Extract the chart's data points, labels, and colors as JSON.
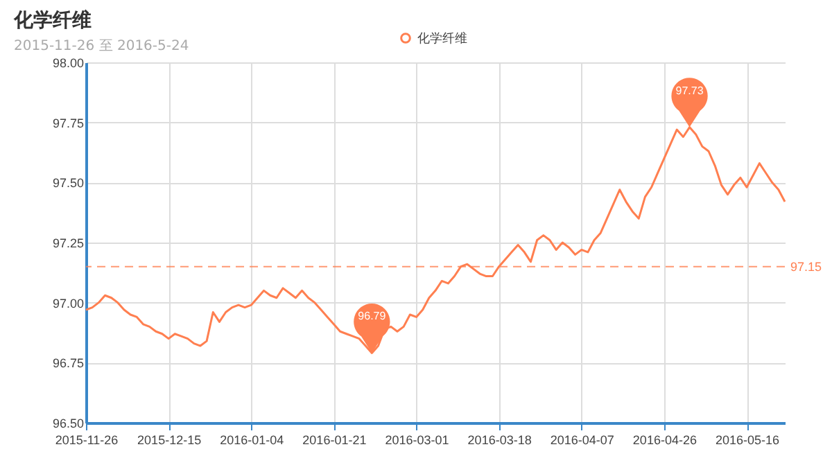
{
  "chart_data": {
    "type": "line",
    "title": "化学纤维",
    "subtitle": "2015-11-26 至 2016-5-24",
    "categories": [
      "2015-11-26",
      null,
      null,
      null,
      null,
      null,
      null,
      null,
      null,
      null,
      null,
      null,
      null,
      "2015-12-15",
      null,
      null,
      null,
      null,
      null,
      null,
      null,
      null,
      null,
      null,
      null,
      null,
      "2016-01-04",
      null,
      null,
      null,
      null,
      null,
      null,
      null,
      null,
      null,
      null,
      null,
      null,
      "2016-01-21",
      null,
      null,
      null,
      null,
      null,
      null,
      null,
      null,
      null,
      null,
      null,
      null,
      "2016-03-01",
      null,
      null,
      null,
      null,
      null,
      null,
      null,
      null,
      null,
      null,
      null,
      null,
      "2016-03-18",
      null,
      null,
      null,
      null,
      null,
      null,
      null,
      null,
      null,
      null,
      null,
      null,
      "2016-04-07",
      null,
      null,
      null,
      null,
      null,
      null,
      null,
      null,
      null,
      null,
      null,
      null,
      "2016-04-26",
      null,
      null,
      null,
      null,
      null,
      null,
      null,
      null,
      null,
      null,
      null,
      null,
      "2016-05-16",
      null,
      null,
      null,
      null,
      null,
      null
    ],
    "series": [
      {
        "name": "化学纤维",
        "color": "#ff7f50",
        "values": [
          96.97,
          96.98,
          97.0,
          97.03,
          97.02,
          97.0,
          96.97,
          96.95,
          96.94,
          96.91,
          96.9,
          96.88,
          96.87,
          96.85,
          96.87,
          96.86,
          96.85,
          96.83,
          96.82,
          96.84,
          96.96,
          96.92,
          96.96,
          96.98,
          96.99,
          96.98,
          96.99,
          97.02,
          97.05,
          97.03,
          97.02,
          97.06,
          97.04,
          97.02,
          97.05,
          97.02,
          97.0,
          96.97,
          96.94,
          96.91,
          96.88,
          96.87,
          96.86,
          96.85,
          96.82,
          96.79,
          96.82,
          96.89,
          96.9,
          96.88,
          96.9,
          96.95,
          96.94,
          96.97,
          97.02,
          97.05,
          97.09,
          97.08,
          97.11,
          97.15,
          97.16,
          97.14,
          97.12,
          97.11,
          97.11,
          97.15,
          97.18,
          97.21,
          97.24,
          97.21,
          97.17,
          97.26,
          97.28,
          97.26,
          97.22,
          97.25,
          97.23,
          97.2,
          97.22,
          97.21,
          97.26,
          97.29,
          97.35,
          97.41,
          97.47,
          97.42,
          97.38,
          97.35,
          97.44,
          97.48,
          97.54,
          97.6,
          97.66,
          97.72,
          97.69,
          97.73,
          97.7,
          97.65,
          97.63,
          97.57,
          97.49,
          97.45,
          97.49,
          97.52,
          97.48,
          97.53,
          97.58,
          97.54,
          97.5,
          97.47,
          97.42
        ]
      }
    ],
    "ylim": [
      96.5,
      98
    ],
    "yticks": [
      {
        "value": 96.5,
        "label": "96.50"
      },
      {
        "value": 96.75,
        "label": "96.75"
      },
      {
        "value": 97,
        "label": "97.00"
      },
      {
        "value": 97.25,
        "label": "97.25"
      },
      {
        "value": 97.5,
        "label": "97.50"
      },
      {
        "value": 97.75,
        "label": "97.75"
      },
      {
        "value": 98,
        "label": "98.00"
      }
    ],
    "grid": true,
    "legend": "top",
    "ref_lines": [
      {
        "axis": "y",
        "value": 97.15,
        "label": "97.15",
        "color": "#ff7f50",
        "line_style": "dashed"
      }
    ],
    "annotations": [
      {
        "text": "97.73",
        "y": 97.73
      },
      {
        "text": "96.79",
        "y": 96.79
      }
    ]
  }
}
